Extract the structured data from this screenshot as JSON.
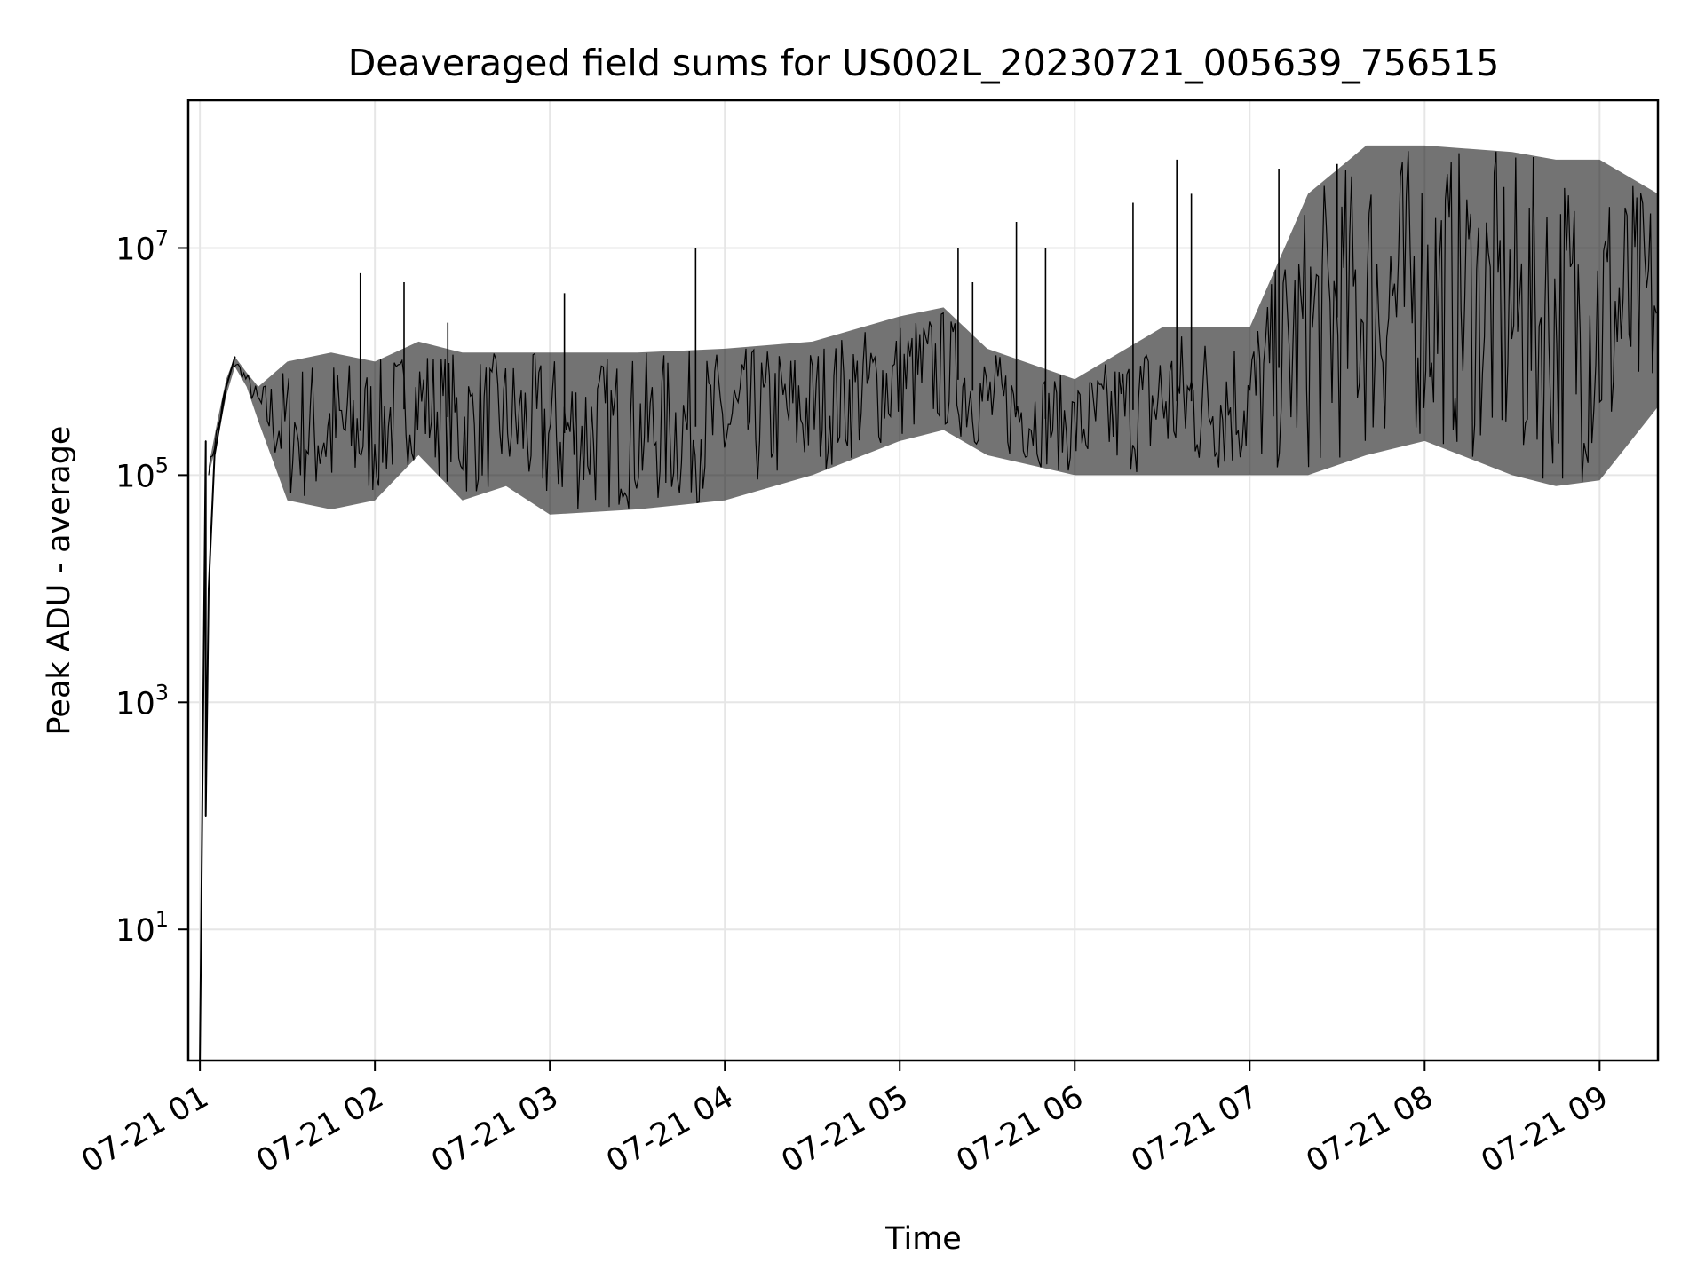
{
  "chart_data": {
    "type": "line",
    "title": "Deaveraged field sums for US002L_20230721_005639_756515",
    "xlabel": "Time",
    "ylabel": "Peak ADU - average",
    "y_scale": "log",
    "ylim": [
      0.7,
      200000000
    ],
    "xlim": [
      "2023-07-21 00:56",
      "2023-07-21 09:20"
    ],
    "grid": true,
    "x_ticks": [
      {
        "value": "2023-07-21 01:00",
        "label": "07-21 01"
      },
      {
        "value": "2023-07-21 02:00",
        "label": "07-21 02"
      },
      {
        "value": "2023-07-21 03:00",
        "label": "07-21 03"
      },
      {
        "value": "2023-07-21 04:00",
        "label": "07-21 04"
      },
      {
        "value": "2023-07-21 05:00",
        "label": "07-21 05"
      },
      {
        "value": "2023-07-21 06:00",
        "label": "07-21 06"
      },
      {
        "value": "2023-07-21 07:00",
        "label": "07-21 07"
      },
      {
        "value": "2023-07-21 08:00",
        "label": "07-21 08"
      },
      {
        "value": "2023-07-21 09:00",
        "label": "07-21 09"
      }
    ],
    "y_ticks": [
      {
        "value": 10,
        "base": "10",
        "exp": "1"
      },
      {
        "value": 1000,
        "base": "10",
        "exp": "3"
      },
      {
        "value": 100000,
        "base": "10",
        "exp": "5"
      },
      {
        "value": 10000000,
        "base": "10",
        "exp": "7"
      }
    ],
    "series": [
      {
        "color": "#000000",
        "envelope": [
          {
            "t": "2023-07-21 01:03",
            "low": 100000,
            "high": 120000
          },
          {
            "t": "2023-07-21 01:06",
            "low": 200000,
            "high": 300000
          },
          {
            "t": "2023-07-21 01:09",
            "low": 500000,
            "high": 700000
          },
          {
            "t": "2023-07-21 01:12",
            "low": 900000,
            "high": 1100000
          },
          {
            "t": "2023-07-21 01:16",
            "low": 600000,
            "high": 800000
          },
          {
            "t": "2023-07-21 01:20",
            "low": 300000,
            "high": 600000
          },
          {
            "t": "2023-07-21 01:30",
            "low": 60000,
            "high": 1000000
          },
          {
            "t": "2023-07-21 01:45",
            "low": 50000,
            "high": 1200000
          },
          {
            "t": "2023-07-21 02:00",
            "low": 60000,
            "high": 1000000
          },
          {
            "t": "2023-07-21 02:15",
            "low": 150000,
            "high": 1500000
          },
          {
            "t": "2023-07-21 02:30",
            "low": 60000,
            "high": 1200000
          },
          {
            "t": "2023-07-21 02:45",
            "low": 80000,
            "high": 1200000
          },
          {
            "t": "2023-07-21 03:00",
            "low": 45000,
            "high": 1200000
          },
          {
            "t": "2023-07-21 03:30",
            "low": 50000,
            "high": 1200000
          },
          {
            "t": "2023-07-21 04:00",
            "low": 60000,
            "high": 1300000
          },
          {
            "t": "2023-07-21 04:30",
            "low": 100000,
            "high": 1500000
          },
          {
            "t": "2023-07-21 05:00",
            "low": 200000,
            "high": 2500000
          },
          {
            "t": "2023-07-21 05:15",
            "low": 250000,
            "high": 3000000
          },
          {
            "t": "2023-07-21 05:30",
            "low": 150000,
            "high": 1300000
          },
          {
            "t": "2023-07-21 06:00",
            "low": 100000,
            "high": 700000
          },
          {
            "t": "2023-07-21 06:30",
            "low": 100000,
            "high": 2000000
          },
          {
            "t": "2023-07-21 07:00",
            "low": 100000,
            "high": 2000000
          },
          {
            "t": "2023-07-21 07:20",
            "low": 100000,
            "high": 30000000
          },
          {
            "t": "2023-07-21 07:40",
            "low": 150000,
            "high": 80000000
          },
          {
            "t": "2023-07-21 08:00",
            "low": 200000,
            "high": 80000000
          },
          {
            "t": "2023-07-21 08:30",
            "low": 100000,
            "high": 70000000
          },
          {
            "t": "2023-07-21 08:45",
            "low": 80000,
            "high": 60000000
          },
          {
            "t": "2023-07-21 09:00",
            "low": 90000,
            "high": 60000000
          },
          {
            "t": "2023-07-21 09:20",
            "low": 400000,
            "high": 30000000
          }
        ],
        "points": [
          {
            "t": "2023-07-21 01:00",
            "value": 0.5
          },
          {
            "t": "2023-07-21 01:02",
            "value": 200000
          },
          {
            "t": "2023-07-21 01:02",
            "value": 100
          },
          {
            "t": "2023-07-21 01:03",
            "value": 10000
          },
          {
            "t": "2023-07-21 01:05",
            "value": 150000
          },
          {
            "t": "2023-07-21 01:09",
            "value": 600000
          },
          {
            "t": "2023-07-21 01:12",
            "value": 1100000
          }
        ],
        "spikes": [
          {
            "t": "2023-07-21 01:55",
            "value": 6000000
          },
          {
            "t": "2023-07-21 02:10",
            "value": 5000000
          },
          {
            "t": "2023-07-21 02:25",
            "value": 2200000
          },
          {
            "t": "2023-07-21 03:05",
            "value": 4000000
          },
          {
            "t": "2023-07-21 03:50",
            "value": 10000000
          },
          {
            "t": "2023-07-21 05:20",
            "value": 10000000
          },
          {
            "t": "2023-07-21 05:25",
            "value": 5000000
          },
          {
            "t": "2023-07-21 05:40",
            "value": 17000000
          },
          {
            "t": "2023-07-21 05:50",
            "value": 10000000
          },
          {
            "t": "2023-07-21 06:20",
            "value": 25000000
          },
          {
            "t": "2023-07-21 06:35",
            "value": 60000000
          },
          {
            "t": "2023-07-21 06:40",
            "value": 30000000
          },
          {
            "t": "2023-07-21 07:10",
            "value": 50000000
          },
          {
            "t": "2023-07-21 07:30",
            "value": 55000000
          }
        ]
      }
    ]
  }
}
